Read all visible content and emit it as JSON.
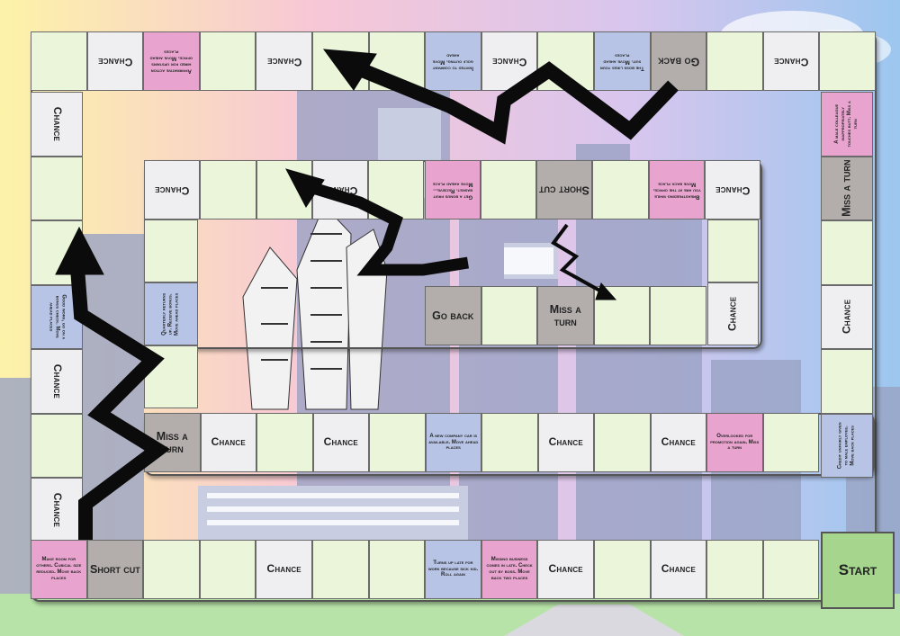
{
  "board": {
    "colors": {
      "cell": "#eaf5da",
      "chance": "#efeef1",
      "pink": "#e8a4cf",
      "blue": "#b7c4e6",
      "gray": "#b3aeac",
      "start": "#a6d68d",
      "arrow": "#000000"
    },
    "outer_top": [
      {
        "t": "empty"
      },
      {
        "t": "chance",
        "text": "Chance"
      },
      {
        "t": "pink",
        "text": "Affirmative action hired for upstairs office. Move ahead places"
      },
      {
        "t": "empty"
      },
      {
        "t": "chance",
        "text": "Chance"
      },
      {
        "t": "empty"
      },
      {
        "t": "empty"
      },
      {
        "t": "blue",
        "text": "Invited to company golf outing. Move ahead"
      },
      {
        "t": "chance",
        "text": "Chance"
      },
      {
        "t": "empty"
      },
      {
        "t": "blue",
        "text": "The boss likes your suit. Move ahead places"
      },
      {
        "t": "gray",
        "text": "Go back"
      },
      {
        "t": "empty"
      },
      {
        "t": "chance",
        "text": "Chance"
      },
      {
        "t": "empty"
      }
    ],
    "outer_right": [
      {
        "t": "pink",
        "text": "A male colleague inappropriately touches butt. Miss a turn"
      },
      {
        "t": "gray",
        "text": "Miss a turn"
      },
      {
        "t": "empty"
      },
      {
        "t": "chance",
        "text": "Chance"
      },
      {
        "t": "empty"
      },
      {
        "t": "blue",
        "text": "Credit unfairly given to male employee. Move back places"
      }
    ],
    "outer_left": [
      {
        "t": "chance",
        "text": "Chance"
      },
      {
        "t": "empty"
      },
      {
        "t": "empty"
      },
      {
        "t": "blue",
        "text": "Good work, go on a bonus check. Move ahead places"
      },
      {
        "t": "chance",
        "text": "Chance"
      },
      {
        "t": "empty"
      },
      {
        "t": "chance",
        "text": "Chance"
      }
    ],
    "inner_top": [
      {
        "t": "chance",
        "text": "Chance"
      },
      {
        "t": "empty"
      },
      {
        "t": "empty"
      },
      {
        "t": "chance",
        "text": "Chance"
      },
      {
        "t": "empty"
      },
      {
        "t": "pink",
        "text": "Get a bonus fruit basket. Receive... Move ahead place"
      },
      {
        "t": "empty"
      },
      {
        "t": "gray",
        "text": "Short cut"
      },
      {
        "t": "empty"
      },
      {
        "t": "pink",
        "text": "Breastfeeding while you are at the office. Move back place"
      },
      {
        "t": "chance",
        "text": "Chance"
      }
    ],
    "inner_left": [
      {
        "t": "empty"
      },
      {
        "t": "blue",
        "text": "Quarterly returns up. Receive bonus. Move ahead places"
      },
      {
        "t": "empty"
      }
    ],
    "inner_right": [
      {
        "t": "empty"
      },
      {
        "t": "chance",
        "text": "Chance"
      }
    ],
    "inner_mid": [
      {
        "t": "gray",
        "text": "Go back"
      },
      {
        "t": "empty"
      },
      {
        "t": "gray",
        "text": "Miss a turn"
      },
      {
        "t": "empty"
      },
      {
        "t": "empty"
      }
    ],
    "row3": [
      {
        "t": "gray",
        "text": "Miss a turn"
      },
      {
        "t": "chance",
        "text": "Chance"
      },
      {
        "t": "empty"
      },
      {
        "t": "chance",
        "text": "Chance"
      },
      {
        "t": "empty"
      },
      {
        "t": "blue",
        "text": "A new company car is available. Move ahead places"
      },
      {
        "t": "empty"
      },
      {
        "t": "chance",
        "text": "Chance"
      },
      {
        "t": "empty"
      },
      {
        "t": "chance",
        "text": "Chance"
      },
      {
        "t": "pink",
        "text": "Overlooked for promotion again. Miss a turn"
      },
      {
        "t": "empty"
      }
    ],
    "bottom": [
      {
        "t": "pink",
        "text": "Make room for others. Cubical size reduced. Move back places"
      },
      {
        "t": "gray",
        "text": "Short cut"
      },
      {
        "t": "empty"
      },
      {
        "t": "empty"
      },
      {
        "t": "chance",
        "text": "Chance"
      },
      {
        "t": "empty"
      },
      {
        "t": "empty"
      },
      {
        "t": "blue",
        "text": "Turns up late for work because sick kid. Roll again"
      },
      {
        "t": "pink",
        "text": "Missing business comes in late. Check out by boss. Move back two places"
      },
      {
        "t": "chance",
        "text": "Chance"
      },
      {
        "t": "empty"
      },
      {
        "t": "chance",
        "text": "Chance"
      },
      {
        "t": "empty"
      },
      {
        "t": "empty"
      }
    ],
    "start": {
      "t": "start",
      "text": "Start"
    }
  }
}
